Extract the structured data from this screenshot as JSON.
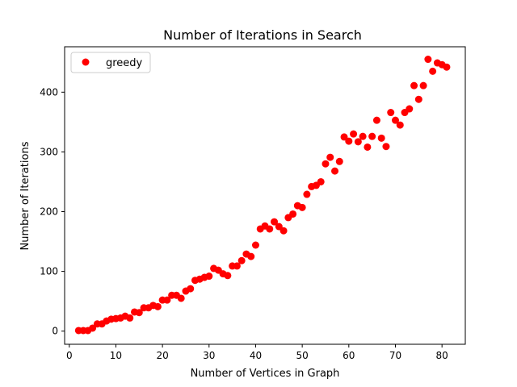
{
  "chart_data": {
    "type": "scatter",
    "title": "Number of Iterations in Search",
    "xlabel": "Number of Vertices in Graph",
    "ylabel": "Number of Iterations",
    "xlim": [
      -1,
      85
    ],
    "ylim": [
      -22,
      476
    ],
    "xticks": [
      0,
      10,
      20,
      30,
      40,
      50,
      60,
      70,
      80
    ],
    "yticks": [
      0,
      100,
      200,
      300,
      400
    ],
    "grid": false,
    "legend_position": "top-left",
    "series": [
      {
        "name": "greedy",
        "color": "#ff0000",
        "x": [
          2,
          3,
          4,
          5,
          6,
          7,
          8,
          9,
          10,
          11,
          12,
          13,
          14,
          15,
          16,
          17,
          18,
          19,
          20,
          21,
          22,
          23,
          24,
          25,
          26,
          27,
          28,
          29,
          30,
          31,
          32,
          33,
          34,
          35,
          36,
          37,
          38,
          39,
          40,
          41,
          42,
          43,
          44,
          45,
          46,
          47,
          48,
          49,
          50,
          51,
          52,
          53,
          54,
          55,
          56,
          57,
          58,
          59,
          60,
          61,
          62,
          63,
          64,
          65,
          66,
          67,
          68,
          69,
          70,
          71,
          72,
          73,
          74,
          75,
          76,
          77,
          78,
          79,
          80,
          81
        ],
        "y": [
          1,
          1,
          1,
          5,
          12,
          12,
          17,
          20,
          21,
          22,
          25,
          22,
          32,
          31,
          39,
          39,
          43,
          41,
          52,
          52,
          60,
          60,
          55,
          67,
          71,
          85,
          87,
          90,
          92,
          105,
          102,
          96,
          93,
          109,
          109,
          118,
          129,
          125,
          144,
          171,
          176,
          171,
          183,
          175,
          168,
          190,
          196,
          210,
          207,
          229,
          242,
          244,
          250,
          280,
          291,
          268,
          284,
          325,
          318,
          330,
          317,
          326,
          308,
          326,
          353,
          323,
          309,
          366,
          353,
          345,
          366,
          372,
          411,
          388,
          411,
          455,
          435,
          449,
          446,
          442
        ]
      }
    ]
  }
}
